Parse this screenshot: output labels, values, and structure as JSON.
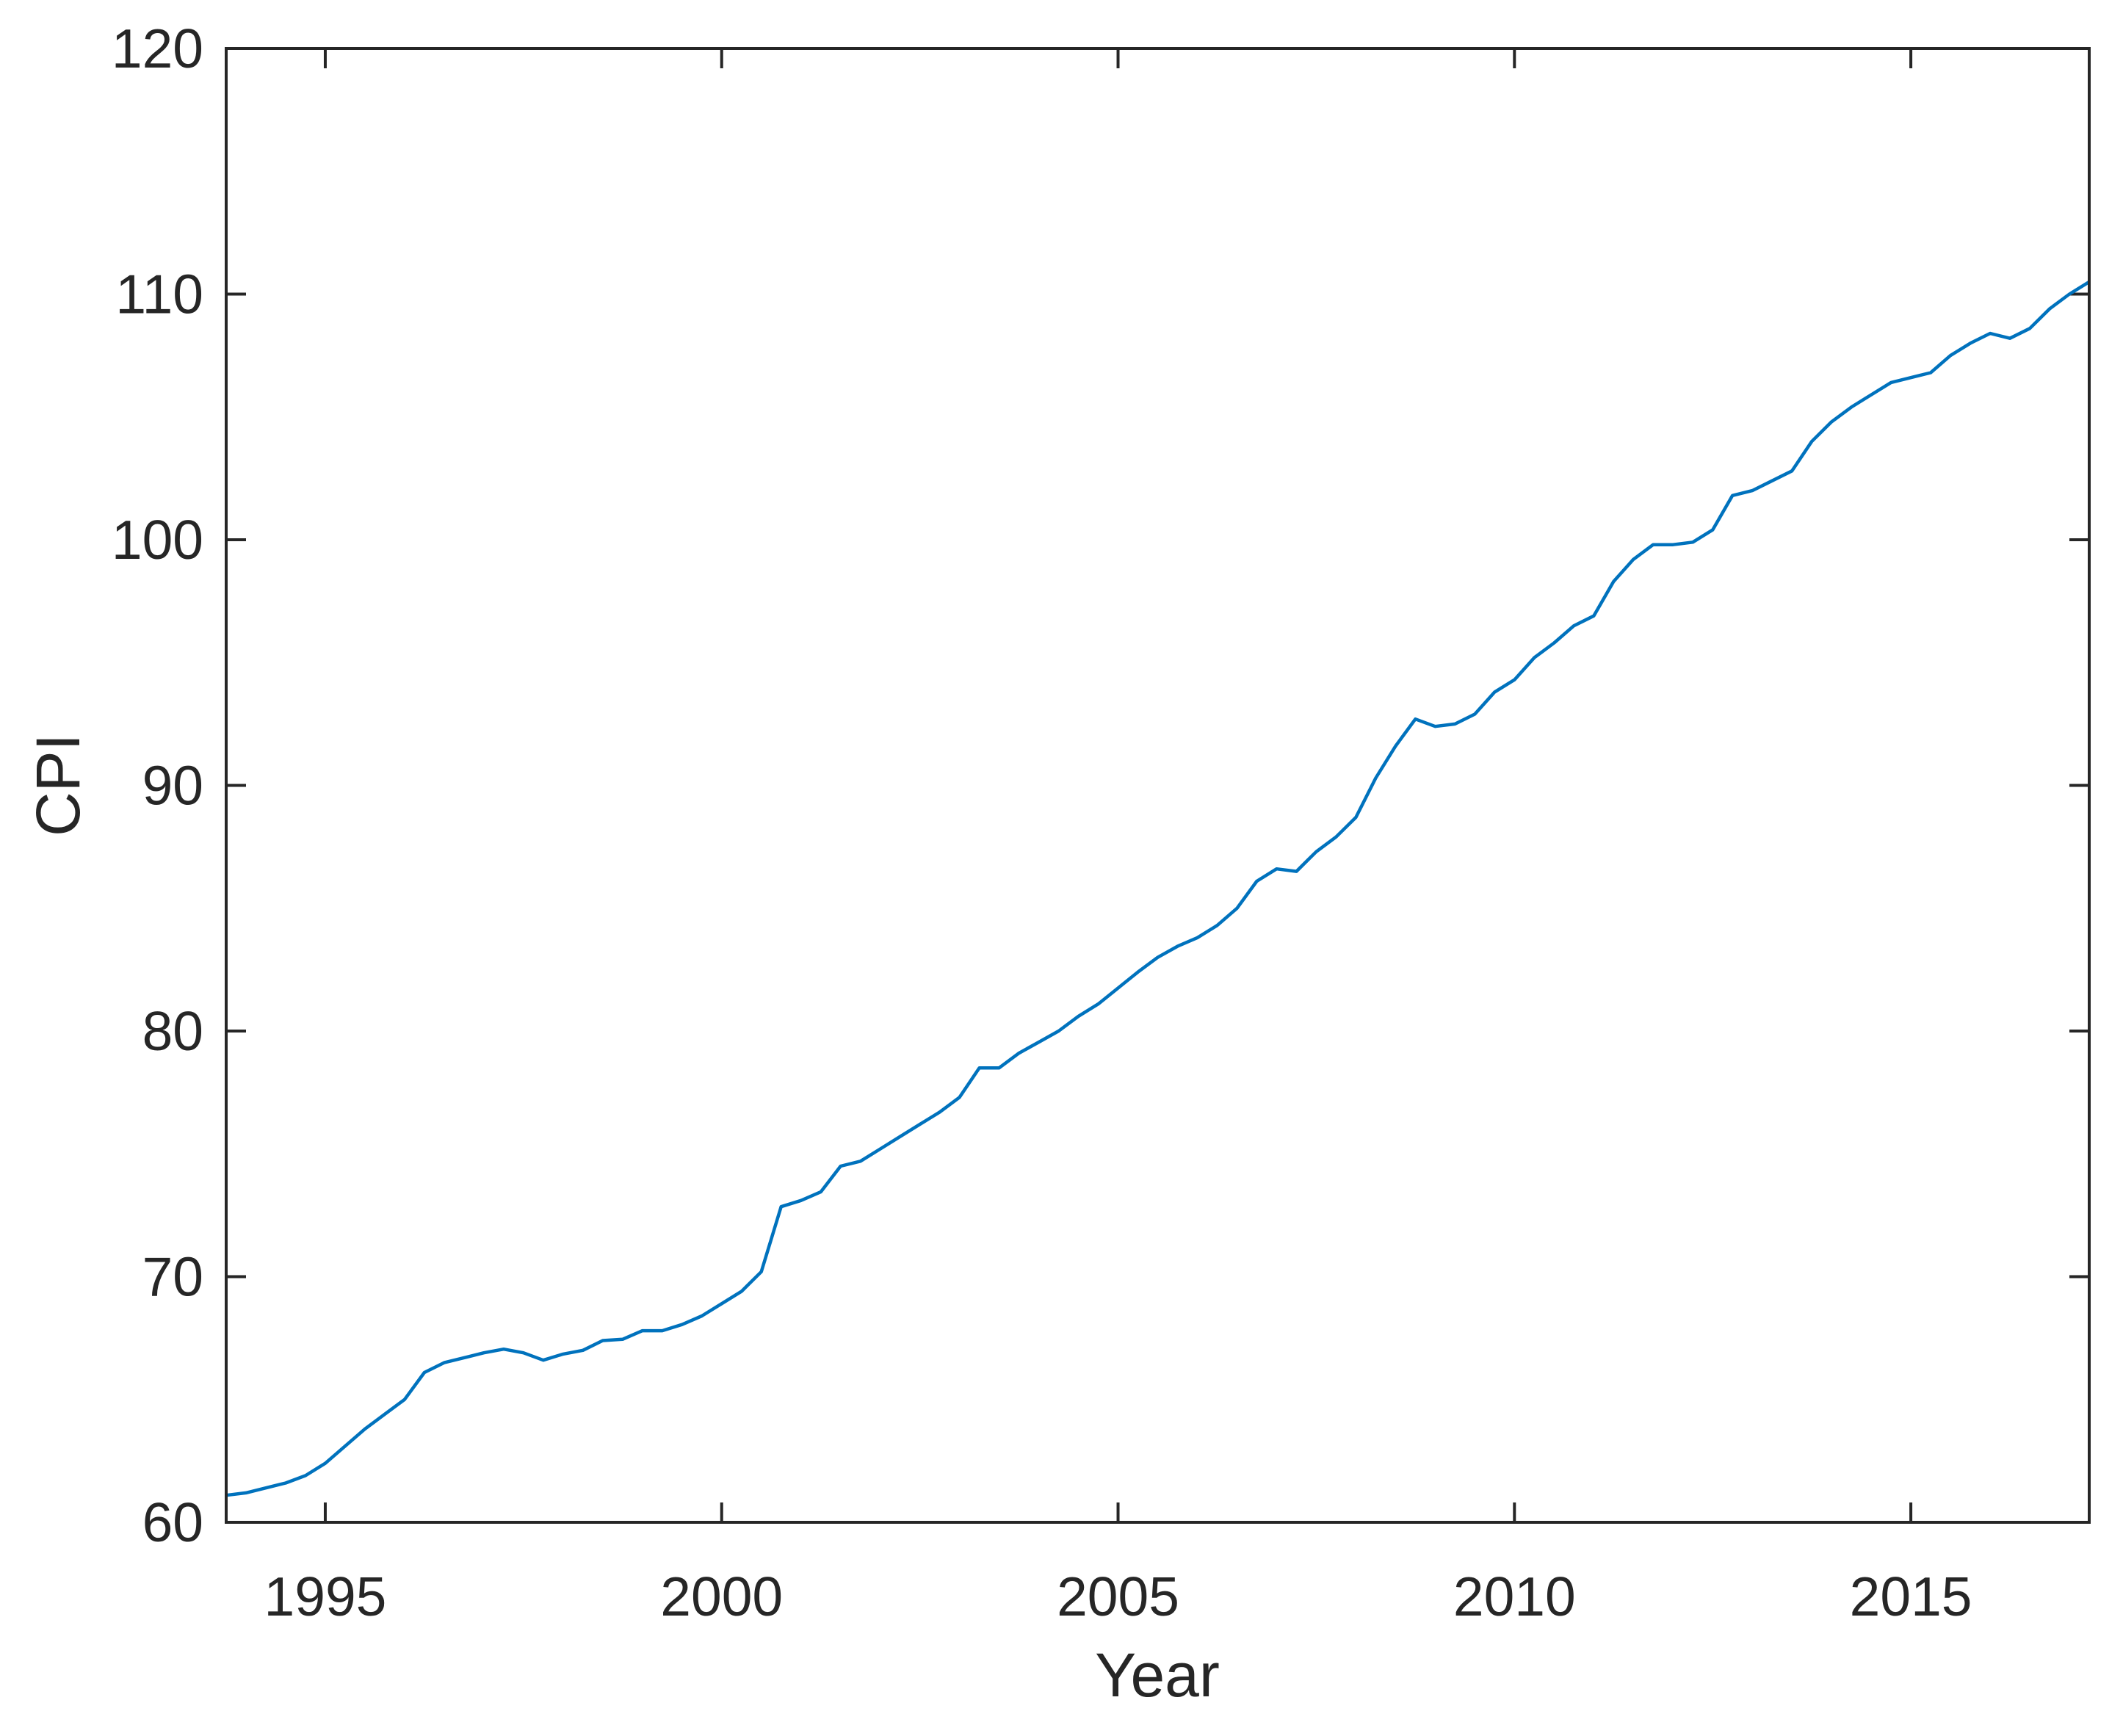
{
  "chart_data": {
    "type": "line",
    "title": "",
    "xlabel": "Year",
    "ylabel": "CPI",
    "frequency": "quarterly",
    "xlim": [
      1993.75,
      2017.25
    ],
    "ylim": [
      60,
      120
    ],
    "xticks": [
      1995,
      2000,
      2005,
      2010,
      2015
    ],
    "yticks": [
      60,
      70,
      80,
      90,
      100,
      110,
      120
    ],
    "grid": false,
    "legend": "none",
    "line_color": "#0072BD",
    "axis_color": "#262626",
    "background_color": "#FFFFFF",
    "x": [
      1993.75,
      1994.0,
      1994.25,
      1994.5,
      1994.75,
      1995.0,
      1995.25,
      1995.5,
      1995.75,
      1996.0,
      1996.25,
      1996.5,
      1996.75,
      1997.0,
      1997.25,
      1997.5,
      1997.75,
      1998.0,
      1998.25,
      1998.5,
      1998.75,
      1999.0,
      1999.25,
      1999.5,
      1999.75,
      2000.0,
      2000.25,
      2000.5,
      2000.75,
      2001.0,
      2001.25,
      2001.5,
      2001.75,
      2002.0,
      2002.25,
      2002.5,
      2002.75,
      2003.0,
      2003.25,
      2003.5,
      2003.75,
      2004.0,
      2004.25,
      2004.5,
      2004.75,
      2005.0,
      2005.25,
      2005.5,
      2005.75,
      2006.0,
      2006.25,
      2006.5,
      2006.75,
      2007.0,
      2007.25,
      2007.5,
      2007.75,
      2008.0,
      2008.25,
      2008.5,
      2008.75,
      2009.0,
      2009.25,
      2009.5,
      2009.75,
      2010.0,
      2010.25,
      2010.5,
      2010.75,
      2011.0,
      2011.25,
      2011.5,
      2011.75,
      2012.0,
      2012.25,
      2012.5,
      2012.75,
      2013.0,
      2013.25,
      2013.5,
      2013.75,
      2014.0,
      2014.25,
      2014.5,
      2014.75,
      2015.0,
      2015.25,
      2015.5,
      2015.75,
      2016.0,
      2016.25,
      2016.5,
      2016.75,
      2017.0,
      2017.25
    ],
    "series": [
      {
        "name": "CPI",
        "values": [
          61.1,
          61.2,
          61.4,
          61.6,
          61.9,
          62.4,
          63.1,
          63.8,
          64.4,
          65.0,
          66.1,
          66.5,
          66.7,
          66.9,
          67.05,
          66.9,
          66.6,
          66.85,
          67.0,
          67.4,
          67.45,
          67.8,
          67.8,
          68.05,
          68.4,
          68.9,
          69.4,
          70.2,
          72.85,
          73.1,
          73.45,
          74.5,
          74.7,
          75.2,
          75.7,
          76.2,
          76.7,
          77.3,
          78.5,
          78.5,
          79.1,
          79.55,
          80.0,
          80.6,
          81.1,
          81.75,
          82.4,
          83.0,
          83.45,
          83.8,
          84.3,
          85.0,
          86.1,
          86.6,
          86.5,
          87.3,
          87.9,
          88.7,
          90.3,
          91.6,
          92.7,
          92.4,
          92.5,
          92.9,
          93.8,
          94.3,
          95.2,
          95.8,
          96.5,
          96.9,
          98.3,
          99.2,
          99.8,
          99.8,
          99.9,
          100.4,
          101.8,
          102.0,
          102.4,
          102.8,
          104.0,
          104.8,
          105.4,
          105.9,
          106.4,
          106.6,
          106.8,
          107.5,
          108.0,
          108.4,
          108.2,
          108.6,
          109.4,
          110.0,
          110.5
        ]
      }
    ]
  }
}
